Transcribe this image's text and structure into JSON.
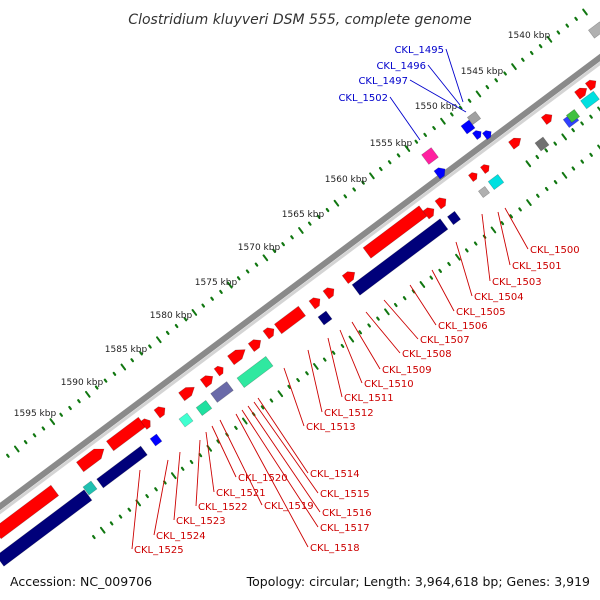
{
  "title": "Clostridium kluyveri DSM 555, complete genome",
  "footer": {
    "accession": "Accession: NC_009706",
    "summary": "Topology: circular; Length: 3,964,618 bp; Genes: 3,919"
  },
  "colors": {
    "forward": "#ff0000",
    "reverse_cds": "#00007a",
    "blue": "#0000ff",
    "gray_track": "#888888",
    "label_reverse": "#0000cc",
    "label_forward": "#cc0000",
    "tick": "#117711"
  },
  "kbp_labels": [
    "1540 kbp",
    "1545 kbp",
    "1550 kbp",
    "1555 kbp",
    "1560 kbp",
    "1565 kbp",
    "1570 kbp",
    "1575 kbp",
    "1580 kbp",
    "1585 kbp",
    "1590 kbp",
    "1595 kbp"
  ],
  "reverse_labels": [
    "CKL_1495",
    "CKL_1496",
    "CKL_1497",
    "CKL_1502"
  ],
  "forward_labels": [
    "CKL_1500",
    "CKL_1501",
    "CKL_1503",
    "CKL_1504",
    "CKL_1505",
    "CKL_1506",
    "CKL_1507",
    "CKL_1508",
    "CKL_1509",
    "CKL_1510",
    "CKL_1511",
    "CKL_1512",
    "CKL_1513",
    "CKL_1514",
    "CKL_1515",
    "CKL_1516",
    "CKL_1517",
    "CKL_1518",
    "CKL_1519",
    "CKL_1520",
    "CKL_1521",
    "CKL_1522",
    "CKL_1523",
    "CKL_1524",
    "CKL_1525"
  ]
}
